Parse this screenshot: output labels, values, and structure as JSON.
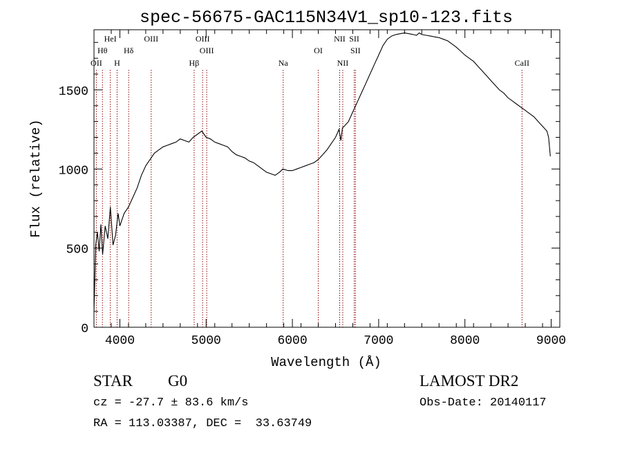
{
  "chart_data": {
    "type": "line",
    "title": "spec-56675-GAC115N34V1_sp10-123.fits",
    "xlabel": "Wavelength (Å)",
    "ylabel": "Flux (relative)",
    "xlim": [
      3700,
      9100
    ],
    "ylim": [
      0,
      1880
    ],
    "x_ticks": [
      4000,
      5000,
      6000,
      7000,
      8000,
      9000
    ],
    "y_ticks": [
      0,
      500,
      1000,
      1500
    ],
    "grid": false,
    "line_color": "#000000",
    "marker_color": "#8b0000",
    "series": [
      {
        "x": [
          3700,
          3720,
          3740,
          3760,
          3780,
          3800,
          3830,
          3860,
          3890,
          3920,
          3950,
          3980,
          4000,
          4050,
          4100,
          4150,
          4200,
          4250,
          4300,
          4350,
          4400,
          4450,
          4500,
          4550,
          4600,
          4650,
          4700,
          4750,
          4800,
          4850,
          4900,
          4950,
          5000,
          5050,
          5100,
          5150,
          5200,
          5250,
          5300,
          5350,
          5400,
          5450,
          5500,
          5550,
          5600,
          5650,
          5700,
          5750,
          5800,
          5850,
          5890,
          5950,
          6000,
          6050,
          6100,
          6150,
          6200,
          6250,
          6300,
          6350,
          6400,
          6450,
          6500,
          6540,
          6563,
          6580,
          6600,
          6650,
          6700,
          6750,
          6800,
          6850,
          6900,
          6950,
          7000,
          7050,
          7100,
          7150,
          7200,
          7250,
          7300,
          7350,
          7400,
          7440,
          7470,
          7500,
          7550,
          7600,
          7650,
          7700,
          7750,
          7800,
          7850,
          7900,
          7950,
          8000,
          8050,
          8100,
          8150,
          8200,
          8250,
          8300,
          8350,
          8400,
          8450,
          8500,
          8550,
          8600,
          8650,
          8700,
          8750,
          8800,
          8850,
          8900,
          8950,
          8970,
          8990
        ],
        "y": [
          100,
          520,
          600,
          480,
          650,
          460,
          640,
          560,
          760,
          520,
          580,
          720,
          640,
          720,
          760,
          820,
          880,
          960,
          1020,
          1060,
          1100,
          1120,
          1140,
          1150,
          1160,
          1170,
          1190,
          1180,
          1170,
          1200,
          1220,
          1240,
          1200,
          1190,
          1170,
          1160,
          1150,
          1140,
          1110,
          1090,
          1080,
          1070,
          1050,
          1040,
          1020,
          1000,
          980,
          970,
          960,
          980,
          1000,
          990,
          990,
          1000,
          1010,
          1020,
          1030,
          1040,
          1060,
          1090,
          1120,
          1160,
          1200,
          1250,
          1180,
          1260,
          1270,
          1300,
          1360,
          1420,
          1480,
          1540,
          1600,
          1660,
          1720,
          1780,
          1820,
          1840,
          1850,
          1855,
          1860,
          1855,
          1850,
          1845,
          1860,
          1850,
          1845,
          1840,
          1835,
          1830,
          1820,
          1810,
          1790,
          1770,
          1745,
          1720,
          1700,
          1680,
          1650,
          1620,
          1590,
          1560,
          1530,
          1500,
          1480,
          1450,
          1430,
          1410,
          1390,
          1370,
          1350,
          1330,
          1300,
          1270,
          1240,
          1200,
          1080
        ]
      }
    ],
    "lines": [
      {
        "label": "OII",
        "x": 3727,
        "row": 3
      },
      {
        "label": "Hθ",
        "x": 3798,
        "row": 1
      },
      {
        "label": "HeI",
        "x": 3889,
        "row": 0
      },
      {
        "label": "H",
        "x": 3968,
        "row": 3
      },
      {
        "label": "Hδ",
        "x": 4102,
        "row": 1
      },
      {
        "label": "OIII",
        "x": 4363,
        "row": 0
      },
      {
        "label": "Hβ",
        "x": 4861,
        "row": 3
      },
      {
        "label": "OIII",
        "x": 4959,
        "row": 0
      },
      {
        "label": "OIII",
        "x": 5007,
        "row": 1
      },
      {
        "label": "Na",
        "x": 5893,
        "row": 3
      },
      {
        "label": "OI",
        "x": 6300,
        "row": 1
      },
      {
        "label": "NII",
        "x": 6548,
        "row": 0
      },
      {
        "label": "NII",
        "x": 6584,
        "row": 3
      },
      {
        "label": "SII",
        "x": 6717,
        "row": 0
      },
      {
        "label": "SII",
        "x": 6731,
        "row": 1
      },
      {
        "label": "CaII",
        "x": 8662,
        "row": 3
      }
    ]
  },
  "info": {
    "object_class": "STAR",
    "subclass": "G0",
    "survey": "LAMOST DR2",
    "redshift": "cz = -27.7 ± 83.6 km/s",
    "obs_date": "Obs-Date: 20140117",
    "coords": "RA = 113.03387, DEC =  33.63749"
  }
}
